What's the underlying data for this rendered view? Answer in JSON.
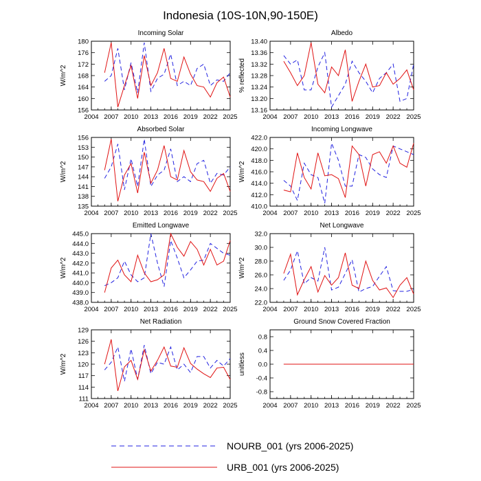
{
  "figure_title": "Indonesia (10S-10N,90-150E)",
  "legend": [
    {
      "label": "NOURB_001 (yrs 2006-2025)",
      "color": "#2020e0",
      "dash": true
    },
    {
      "label": "URB_001 (yrs 2006-2025)",
      "color": "#e01010",
      "dash": false
    }
  ],
  "chart_data": [
    {
      "type": "line",
      "title": "Incoming Solar",
      "ylabel": "W/m^2",
      "xlim": [
        2004,
        2025
      ],
      "ylim": [
        156,
        180
      ],
      "xticks": [
        "2004",
        "2007",
        "2010",
        "2013",
        "2016",
        "2019",
        "2022",
        "2025"
      ],
      "yticks": [
        "156",
        "160",
        "164",
        "168",
        "172",
        "176",
        "180"
      ],
      "x": [
        2006,
        2007,
        2008,
        2009,
        2010,
        2011,
        2012,
        2013,
        2014,
        2015,
        2016,
        2017,
        2018,
        2019,
        2020,
        2021,
        2022,
        2023,
        2024,
        2025
      ],
      "series": [
        {
          "name": "NOURB_001",
          "values": [
            166,
            168,
            177.5,
            163,
            172.5,
            162,
            179.5,
            162.5,
            167,
            168.5,
            175.5,
            164.5,
            166,
            164.5,
            170.5,
            172,
            164.5,
            166.5,
            166,
            169
          ]
        },
        {
          "name": "URB_001",
          "values": [
            169,
            179.5,
            157,
            164.5,
            171.5,
            160,
            175,
            164.5,
            169,
            177.5,
            167,
            166,
            174.5,
            168.5,
            164.5,
            164,
            160.5,
            165.5,
            167.5,
            160.5
          ]
        }
      ]
    },
    {
      "type": "line",
      "title": "Albedo",
      "ylabel": "% reflected",
      "xlim": [
        2004,
        2025
      ],
      "ylim": [
        13.16,
        13.4
      ],
      "xticks": [
        "2004",
        "2007",
        "2010",
        "2013",
        "2016",
        "2019",
        "2022",
        "2025"
      ],
      "yticks": [
        "13.16",
        "13.20",
        "13.24",
        "13.28",
        "13.32",
        "13.36",
        "13.40"
      ],
      "x": [
        2006,
        2007,
        2008,
        2009,
        2010,
        2011,
        2012,
        2013,
        2014,
        2015,
        2016,
        2017,
        2018,
        2019,
        2020,
        2021,
        2022,
        2023,
        2024,
        2025
      ],
      "series": [
        {
          "name": "NOURB_001",
          "values": [
            13.35,
            13.32,
            13.335,
            13.23,
            13.23,
            13.31,
            13.36,
            13.17,
            13.21,
            13.25,
            13.33,
            13.29,
            13.26,
            13.22,
            13.27,
            13.29,
            13.32,
            13.19,
            13.2,
            13.32
          ]
        },
        {
          "name": "URB_001",
          "values": [
            13.33,
            13.29,
            13.245,
            13.28,
            13.395,
            13.25,
            13.22,
            13.31,
            13.28,
            13.37,
            13.19,
            13.26,
            13.32,
            13.24,
            13.245,
            13.29,
            13.25,
            13.27,
            13.3,
            13.23
          ]
        }
      ]
    },
    {
      "type": "line",
      "title": "Absorbed Solar",
      "ylabel": "W/m^2",
      "xlim": [
        2004,
        2025
      ],
      "ylim": [
        135,
        156
      ],
      "xticks": [
        "2004",
        "2007",
        "2010",
        "2013",
        "2016",
        "2019",
        "2022",
        "2025"
      ],
      "yticks": [
        "135",
        "138",
        "141",
        "144",
        "147",
        "150",
        "153",
        "156"
      ],
      "x": [
        2006,
        2007,
        2008,
        2009,
        2010,
        2011,
        2012,
        2013,
        2014,
        2015,
        2016,
        2017,
        2018,
        2019,
        2020,
        2021,
        2022,
        2023,
        2024,
        2025
      ],
      "series": [
        {
          "name": "NOURB_001",
          "values": [
            143.5,
            147,
            154,
            140,
            149.5,
            141,
            155.5,
            141,
            144.5,
            146,
            152.5,
            142.5,
            144,
            142.5,
            148,
            149,
            142,
            145,
            144.5,
            147
          ]
        },
        {
          "name": "URB_001",
          "values": [
            146,
            155.5,
            136.5,
            144.5,
            148,
            139,
            151.5,
            142,
            146,
            153.5,
            144,
            143,
            152,
            145.5,
            143,
            142.5,
            139.5,
            143.5,
            145,
            139.5
          ]
        }
      ]
    },
    {
      "type": "line",
      "title": "Incoming Longwave",
      "ylabel": "W/m^2",
      "xlim": [
        2004,
        2025
      ],
      "ylim": [
        410,
        422
      ],
      "xticks": [
        "2004",
        "2007",
        "2010",
        "2013",
        "2016",
        "2019",
        "2022",
        "2025"
      ],
      "yticks": [
        "410.0",
        "412.0",
        "414.0",
        "416.0",
        "418.0",
        "420.0",
        "422.0"
      ],
      "x": [
        2006,
        2007,
        2008,
        2009,
        2010,
        2011,
        2012,
        2013,
        2014,
        2015,
        2016,
        2017,
        2018,
        2019,
        2020,
        2021,
        2022,
        2023,
        2024,
        2025
      ],
      "series": [
        {
          "name": "NOURB_001",
          "values": [
            414.5,
            413.5,
            411,
            417.5,
            415.5,
            415,
            410.5,
            421,
            418,
            413.5,
            413.5,
            419,
            418.5,
            416.5,
            415.5,
            415,
            420.5,
            420,
            419.5,
            419
          ]
        },
        {
          "name": "URB_001",
          "values": [
            412.8,
            412.5,
            419.3,
            415,
            413,
            419.3,
            415.3,
            415.5,
            414.8,
            411.5,
            420.5,
            419,
            413.5,
            419,
            419.5,
            417.5,
            420.5,
            417.5,
            416.8,
            421
          ]
        }
      ]
    },
    {
      "type": "line",
      "title": "Emitted Longwave",
      "ylabel": "W/m^2",
      "xlim": [
        2004,
        2025
      ],
      "ylim": [
        438,
        445
      ],
      "xticks": [
        "2004",
        "2007",
        "2010",
        "2013",
        "2016",
        "2019",
        "2022",
        "2025"
      ],
      "yticks": [
        "438.0",
        "439.0",
        "440.0",
        "441.0",
        "442.0",
        "443.0",
        "444.0",
        "445.0"
      ],
      "x": [
        2006,
        2007,
        2008,
        2009,
        2010,
        2011,
        2012,
        2013,
        2014,
        2015,
        2016,
        2017,
        2018,
        2019,
        2020,
        2021,
        2022,
        2023,
        2024,
        2025
      ],
      "series": [
        {
          "name": "NOURB_001",
          "values": [
            439.7,
            440,
            440.5,
            442.2,
            440.8,
            440.1,
            440.5,
            445,
            442,
            439.6,
            444.3,
            442.5,
            440.5,
            441.3,
            442.2,
            442.3,
            444,
            443.5,
            443,
            442.8
          ]
        },
        {
          "name": "URB_001",
          "values": [
            439,
            441.5,
            442.3,
            440.8,
            440.1,
            442.8,
            441,
            440.1,
            440.3,
            440.8,
            445,
            443.6,
            442.7,
            444.2,
            443.4,
            441.8,
            443.4,
            441.8,
            442.2,
            444.3
          ]
        }
      ]
    },
    {
      "type": "line",
      "title": "Net Longwave",
      "ylabel": "W/m^2",
      "xlim": [
        2004,
        2025
      ],
      "ylim": [
        22,
        32
      ],
      "xticks": [
        "2004",
        "2007",
        "2010",
        "2013",
        "2016",
        "2019",
        "2022",
        "2025"
      ],
      "yticks": [
        "22.0",
        "24.0",
        "26.0",
        "28.0",
        "30.0",
        "32.0"
      ],
      "x": [
        2006,
        2007,
        2008,
        2009,
        2010,
        2011,
        2012,
        2013,
        2014,
        2015,
        2016,
        2017,
        2018,
        2019,
        2020,
        2021,
        2022,
        2023,
        2024,
        2025
      ],
      "series": [
        {
          "name": "NOURB_001",
          "values": [
            25.2,
            26.7,
            29.5,
            24.7,
            25.6,
            25.1,
            30,
            23.8,
            24.2,
            26.2,
            28.2,
            23.5,
            24,
            24.3,
            25.8,
            27.2,
            23.7,
            23.6,
            23.6,
            23.9
          ]
        },
        {
          "name": "URB_001",
          "values": [
            26.2,
            29,
            23.1,
            25.3,
            27.2,
            23.5,
            25.9,
            24.5,
            25.6,
            29.2,
            24.5,
            24,
            28,
            25.2,
            23.8,
            24.1,
            22.7,
            24.5,
            25.6,
            23.2
          ]
        }
      ]
    },
    {
      "type": "line",
      "title": "Net Radiation",
      "ylabel": "W/m^2",
      "xlim": [
        2004,
        2025
      ],
      "ylim": [
        111,
        129
      ],
      "xticks": [
        "2004",
        "2007",
        "2010",
        "2013",
        "2016",
        "2019",
        "2022",
        "2025"
      ],
      "yticks": [
        "111",
        "114",
        "117",
        "120",
        "123",
        "126",
        "129"
      ],
      "x": [
        2006,
        2007,
        2008,
        2009,
        2010,
        2011,
        2012,
        2013,
        2014,
        2015,
        2016,
        2017,
        2018,
        2019,
        2020,
        2021,
        2022,
        2023,
        2024,
        2025
      ],
      "series": [
        {
          "name": "NOURB_001",
          "values": [
            118.5,
            120.5,
            124.5,
            115.5,
            124,
            116,
            125,
            117.5,
            120.5,
            120,
            124.5,
            118.5,
            120,
            117.8,
            122,
            122,
            119,
            121,
            119.5,
            121.5
          ]
        },
        {
          "name": "URB_001",
          "values": [
            120,
            126.5,
            113,
            119.3,
            121,
            116,
            123.8,
            118.2,
            121,
            124.5,
            119.5,
            119.2,
            124.3,
            120.2,
            118.7,
            117.5,
            116.5,
            119,
            119.2,
            116
          ]
        }
      ]
    },
    {
      "type": "line",
      "title": "Ground Snow Covered Fraction",
      "ylabel": "unitless",
      "xlim": [
        2004,
        2025
      ],
      "ylim": [
        -1,
        1
      ],
      "xticks": [
        "2004",
        "2007",
        "2010",
        "2013",
        "2016",
        "2019",
        "2022",
        "2025"
      ],
      "yticks": [
        "-0.8",
        "-0.4",
        "0.0",
        "0.4",
        "0.8"
      ],
      "x": [
        2006,
        2007,
        2008,
        2009,
        2010,
        2011,
        2012,
        2013,
        2014,
        2015,
        2016,
        2017,
        2018,
        2019,
        2020,
        2021,
        2022,
        2023,
        2024,
        2025
      ],
      "series": [
        {
          "name": "NOURB_001",
          "values": [
            0,
            0,
            0,
            0,
            0,
            0,
            0,
            0,
            0,
            0,
            0,
            0,
            0,
            0,
            0,
            0,
            0,
            0,
            0,
            0
          ]
        },
        {
          "name": "URB_001",
          "values": [
            0,
            0,
            0,
            0,
            0,
            0,
            0,
            0,
            0,
            0,
            0,
            0,
            0,
            0,
            0,
            0,
            0,
            0,
            0,
            0
          ]
        }
      ]
    }
  ]
}
